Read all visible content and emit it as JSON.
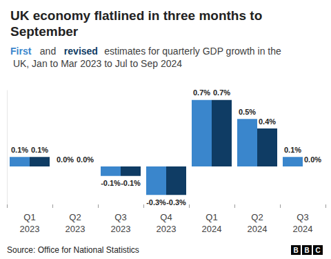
{
  "chart_data": {
    "type": "bar",
    "title": "UK economy flatlined in three months to September",
    "subtitle": "First and revised estimates for quarterly GDP growth in the UK, Jan to Mar 2023 to Jul to Sep 2024",
    "categories": [
      "Q1\n2023",
      "Q2\n2023",
      "Q3\n2023",
      "Q4\n2023",
      "Q1\n2024",
      "Q2\n2024",
      "Q3\n2024"
    ],
    "series": [
      {
        "name": "First",
        "color": "#3a86cc",
        "values": [
          0.1,
          0.0,
          -0.1,
          -0.3,
          0.7,
          0.5,
          0.1
        ],
        "value_labels": [
          "0.1%",
          "0.0%",
          "-0.1%",
          "-0.3%",
          "0.7%",
          "0.5%",
          "0.1%"
        ]
      },
      {
        "name": "revised",
        "color": "#0f3c64",
        "values": [
          0.1,
          0.0,
          -0.1,
          -0.3,
          0.7,
          0.4,
          0.0
        ],
        "value_labels": [
          "0.1%",
          "0.0%",
          "-0.1%",
          "-0.3%",
          "0.7%",
          "0.4%",
          "0.0%"
        ]
      }
    ],
    "ylim": [
      -0.4,
      0.8
    ],
    "grid": false,
    "data_labels": true,
    "tick_labels": "x",
    "source": "Source: Office for National Statistics",
    "logo": "BBC"
  }
}
